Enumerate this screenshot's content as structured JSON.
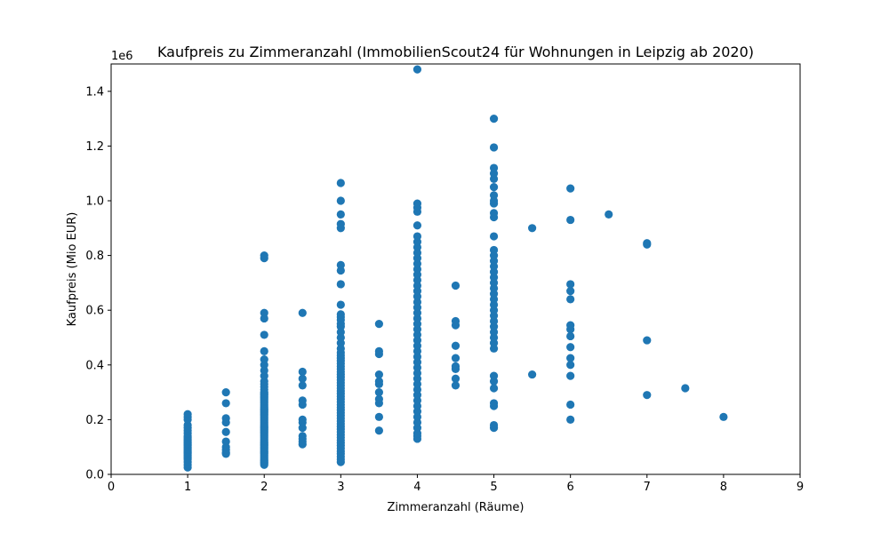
{
  "chart_data": {
    "type": "scatter",
    "title": "Kaufpreis zu Zimmeranzahl (ImmobilienScout24 für Wohnungen in Leipzig ab 2020)",
    "xlabel": "Zimmeranzahl (Räume)",
    "ylabel": "Kaufpreis (Mio EUR)",
    "y_offset_label": "1e6",
    "xlim": [
      0,
      9
    ],
    "ylim": [
      0,
      1.5
    ],
    "x_ticks": [
      0,
      1,
      2,
      3,
      4,
      5,
      6,
      7,
      8,
      9
    ],
    "x_tick_labels": [
      "0",
      "1",
      "2",
      "3",
      "4",
      "5",
      "6",
      "7",
      "8",
      "9"
    ],
    "y_ticks": [
      0,
      0.2,
      0.4,
      0.6,
      0.8,
      1.0,
      1.2,
      1.4
    ],
    "y_tick_labels": [
      "0.0",
      "0.2",
      "0.4",
      "0.6",
      "0.8",
      "1.0",
      "1.2",
      "1.4"
    ],
    "grid": false,
    "marker_color": "#1f77b4",
    "points_by_x": [
      {
        "x": 1,
        "y": [
          0.025,
          0.035,
          0.045,
          0.055,
          0.06,
          0.065,
          0.07,
          0.075,
          0.08,
          0.085,
          0.09,
          0.095,
          0.1,
          0.105,
          0.11,
          0.115,
          0.12,
          0.125,
          0.13,
          0.135,
          0.14,
          0.15,
          0.16,
          0.17,
          0.18,
          0.2,
          0.21,
          0.22
        ]
      },
      {
        "x": 1.5,
        "y": [
          0.075,
          0.08,
          0.09,
          0.1,
          0.12,
          0.155,
          0.19,
          0.205,
          0.26,
          0.3
        ]
      },
      {
        "x": 2,
        "y": [
          0.035,
          0.04,
          0.045,
          0.05,
          0.055,
          0.06,
          0.065,
          0.07,
          0.075,
          0.08,
          0.085,
          0.09,
          0.095,
          0.1,
          0.105,
          0.11,
          0.115,
          0.12,
          0.125,
          0.13,
          0.135,
          0.14,
          0.145,
          0.15,
          0.155,
          0.16,
          0.165,
          0.17,
          0.175,
          0.18,
          0.185,
          0.19,
          0.195,
          0.2,
          0.205,
          0.21,
          0.215,
          0.22,
          0.225,
          0.23,
          0.235,
          0.24,
          0.245,
          0.25,
          0.255,
          0.26,
          0.265,
          0.27,
          0.275,
          0.28,
          0.285,
          0.29,
          0.295,
          0.3,
          0.31,
          0.32,
          0.33,
          0.34,
          0.36,
          0.38,
          0.4,
          0.42,
          0.45,
          0.51,
          0.57,
          0.59,
          0.79,
          0.8
        ]
      },
      {
        "x": 2.5,
        "y": [
          0.11,
          0.12,
          0.13,
          0.14,
          0.17,
          0.19,
          0.2,
          0.255,
          0.27,
          0.325,
          0.35,
          0.375,
          0.59
        ]
      },
      {
        "x": 3,
        "y": [
          0.045,
          0.055,
          0.065,
          0.075,
          0.085,
          0.095,
          0.105,
          0.115,
          0.125,
          0.135,
          0.145,
          0.155,
          0.165,
          0.175,
          0.185,
          0.195,
          0.205,
          0.215,
          0.225,
          0.235,
          0.245,
          0.255,
          0.265,
          0.275,
          0.285,
          0.295,
          0.305,
          0.315,
          0.325,
          0.335,
          0.345,
          0.355,
          0.365,
          0.375,
          0.385,
          0.395,
          0.405,
          0.415,
          0.425,
          0.435,
          0.445,
          0.46,
          0.48,
          0.5,
          0.52,
          0.54,
          0.55,
          0.565,
          0.575,
          0.585,
          0.62,
          0.695,
          0.745,
          0.765,
          0.9,
          0.915,
          0.95,
          1.0,
          1.065
        ]
      },
      {
        "x": 3.5,
        "y": [
          0.16,
          0.21,
          0.26,
          0.275,
          0.3,
          0.33,
          0.34,
          0.365,
          0.44,
          0.45,
          0.55
        ]
      },
      {
        "x": 4,
        "y": [
          0.13,
          0.14,
          0.15,
          0.17,
          0.19,
          0.21,
          0.23,
          0.25,
          0.27,
          0.29,
          0.31,
          0.33,
          0.35,
          0.37,
          0.39,
          0.41,
          0.43,
          0.45,
          0.47,
          0.49,
          0.51,
          0.53,
          0.55,
          0.57,
          0.59,
          0.61,
          0.63,
          0.65,
          0.67,
          0.69,
          0.71,
          0.73,
          0.75,
          0.77,
          0.79,
          0.81,
          0.83,
          0.85,
          0.87,
          0.91,
          0.96,
          0.975,
          0.99,
          1.48
        ]
      },
      {
        "x": 4.5,
        "y": [
          0.325,
          0.35,
          0.385,
          0.395,
          0.425,
          0.47,
          0.545,
          0.56,
          0.69
        ]
      },
      {
        "x": 5,
        "y": [
          0.17,
          0.18,
          0.25,
          0.26,
          0.315,
          0.34,
          0.36,
          0.46,
          0.48,
          0.5,
          0.52,
          0.54,
          0.56,
          0.58,
          0.6,
          0.62,
          0.64,
          0.66,
          0.68,
          0.7,
          0.72,
          0.74,
          0.76,
          0.78,
          0.8,
          0.82,
          0.87,
          0.94,
          0.955,
          0.99,
          1.0,
          1.02,
          1.05,
          1.08,
          1.1,
          1.12,
          1.195,
          1.3
        ]
      },
      {
        "x": 5.5,
        "y": [
          0.365,
          0.9
        ]
      },
      {
        "x": 6,
        "y": [
          0.2,
          0.255,
          0.36,
          0.4,
          0.425,
          0.465,
          0.505,
          0.53,
          0.545,
          0.64,
          0.67,
          0.695,
          0.93,
          1.045
        ]
      },
      {
        "x": 6.5,
        "y": [
          0.95
        ]
      },
      {
        "x": 7,
        "y": [
          0.29,
          0.49,
          0.84,
          0.845
        ]
      },
      {
        "x": 7.5,
        "y": [
          0.315
        ]
      },
      {
        "x": 8,
        "y": [
          0.21
        ]
      }
    ]
  }
}
